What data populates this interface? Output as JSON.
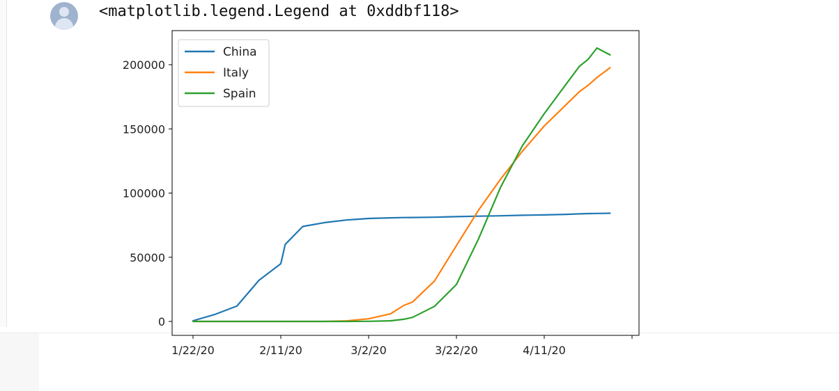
{
  "output_cell": {
    "avatar_icon": "user-avatar-icon",
    "text": "<matplotlib.legend.Legend at 0xddbf118>"
  },
  "colors": {
    "china": "#1f77b4",
    "italy": "#ff7f0e",
    "spain": "#2ca02c"
  },
  "chart_data": {
    "type": "line",
    "title": "",
    "xlabel": "",
    "ylabel": "",
    "x": [
      "1/22/20",
      "1/27/20",
      "2/1/20",
      "2/6/20",
      "2/11/20",
      "2/12/20",
      "2/16/20",
      "2/21/20",
      "2/26/20",
      "3/2/20",
      "3/7/20",
      "3/10/20",
      "3/12/20",
      "3/17/20",
      "3/22/20",
      "3/27/20",
      "4/1/20",
      "4/6/20",
      "4/11/20",
      "4/16/20",
      "4/19/20",
      "4/21/20",
      "4/23/20",
      "4/26/20"
    ],
    "xticks": [
      "1/22/20",
      "2/11/20",
      "3/2/20",
      "3/22/20",
      "4/11/20"
    ],
    "ylim": [
      -10000,
      220000
    ],
    "yticks": [
      "0",
      "50000",
      "100000",
      "150000",
      "200000"
    ],
    "ytick_values": [
      0,
      50000,
      100000,
      150000,
      200000
    ],
    "grid": false,
    "legend_position": "upper-left",
    "series": [
      {
        "name": "China",
        "color_key": "china",
        "values": [
          550,
          5500,
          12000,
          32000,
          45000,
          60000,
          74000,
          77000,
          79000,
          80200,
          80700,
          80900,
          81000,
          81200,
          81600,
          82000,
          82300,
          82700,
          83000,
          83400,
          83800,
          84000,
          84100,
          84300
        ]
      },
      {
        "name": "Italy",
        "color_key": "italy",
        "values": [
          0,
          0,
          0,
          3,
          3,
          3,
          3,
          20,
          453,
          2036,
          5883,
          12462,
          15113,
          31506,
          59138,
          86498,
          110574,
          132547,
          152271,
          168941,
          178972,
          183957,
          189973,
          197675
        ]
      },
      {
        "name": "Spain",
        "color_key": "spain",
        "values": [
          0,
          0,
          0,
          1,
          2,
          2,
          2,
          2,
          13,
          120,
          500,
          1695,
          3146,
          11748,
          28768,
          64059,
          104118,
          136675,
          161852,
          184948,
          198674,
          204178,
          213024,
          207634
        ]
      }
    ]
  }
}
